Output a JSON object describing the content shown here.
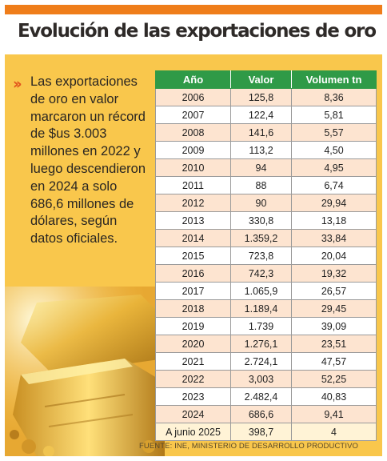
{
  "title": "Evolución de las exportaciones de oro",
  "summary": "Las exportaciones de oro en valor marcaron un récord de $us 3.003 millones en 2022 y luego descendieron en 2024 a solo 686,6 millones de dólares, según datos oficiales.",
  "bullet": "››",
  "source": "FUENTE: INE, MINISTERIO DE DESARROLLO PRODUCTIVO",
  "colors": {
    "accent_bar": "#ef7d1a",
    "panel": "#f9c74c",
    "header": "#2f9a47",
    "row_alt": "#fde4d0",
    "bullet": "#e2531d"
  },
  "chart_data": {
    "type": "table",
    "columns": [
      "Año",
      "Valor",
      "Volumen tn"
    ],
    "rows": [
      [
        "2006",
        "125,8",
        "8,36"
      ],
      [
        "2007",
        "122,4",
        "5,81"
      ],
      [
        "2008",
        "141,6",
        "5,57"
      ],
      [
        "2009",
        "113,2",
        "4,50"
      ],
      [
        "2010",
        "94",
        "4,95"
      ],
      [
        "2011",
        "88",
        "6,74"
      ],
      [
        "2012",
        "90",
        "29,94"
      ],
      [
        "2013",
        "330,8",
        "13,18"
      ],
      [
        "2014",
        "1.359,2",
        "33,84"
      ],
      [
        "2015",
        "723,8",
        "20,04"
      ],
      [
        "2016",
        "742,3",
        "19,32"
      ],
      [
        "2017",
        "1.065,9",
        "26,57"
      ],
      [
        "2018",
        "1.189,4",
        "29,45"
      ],
      [
        "2019",
        "1.739",
        "39,09"
      ],
      [
        "2020",
        "1.276,1",
        "23,51"
      ],
      [
        "2021",
        "2.724,1",
        "47,57"
      ],
      [
        "2022",
        "3,003",
        "52,25"
      ],
      [
        "2023",
        "2.482,4",
        "40,83"
      ],
      [
        "2024",
        "686,6",
        "9,41"
      ],
      [
        "A junio 2025",
        "398,7",
        "4"
      ]
    ]
  }
}
